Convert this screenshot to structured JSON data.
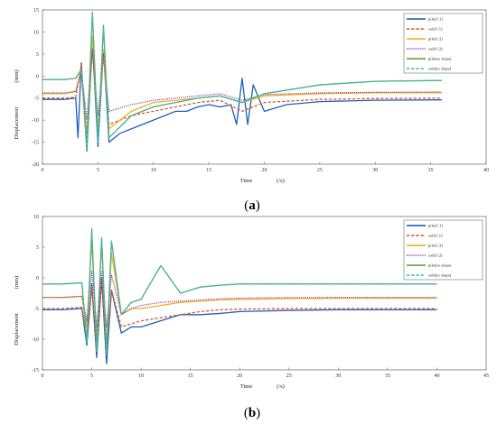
{
  "chart_data": [
    {
      "type": "line",
      "panel_label": "(a)",
      "panel_letter": "a",
      "xlabel": "Time",
      "xunit": "(/s)",
      "ylabel": "Displacement",
      "yunit": "(mm)",
      "xlim": [
        0,
        40
      ],
      "ylim": [
        -20,
        15
      ],
      "xticks": [
        0,
        5,
        10,
        15,
        20,
        25,
        30,
        35,
        40
      ],
      "yticks": [
        15,
        10,
        5,
        0,
        -5,
        -10,
        -15,
        -20
      ],
      "grid": false,
      "legend_position": "top-right",
      "series": [
        {
          "name": "pile(1:1)",
          "color": "#1f5fbf",
          "dash": "solid",
          "x": [
            0,
            2,
            3,
            3.2,
            3.5,
            4,
            4.5,
            5,
            5.5,
            6,
            7,
            8,
            9,
            10,
            11,
            12,
            13,
            14,
            15,
            16,
            17,
            17.5,
            18,
            18.5,
            19,
            20,
            22,
            25,
            30,
            36
          ],
          "y": [
            -5.3,
            -5.3,
            -5.0,
            -14.0,
            3.0,
            -17.0,
            8.0,
            -16.0,
            6.0,
            -15.0,
            -13.0,
            -12.0,
            -11.0,
            -10.0,
            -9.0,
            -8.0,
            -8.0,
            -7.0,
            -6.5,
            -7.0,
            -6.5,
            -11.0,
            -0.5,
            -11.0,
            -2.0,
            -8.0,
            -6.5,
            -5.8,
            -5.5,
            -5.4
          ]
        },
        {
          "name": "soil(1:1)",
          "color": "#e0542a",
          "dash": "dashed",
          "x": [
            0,
            2,
            3,
            3.5,
            4,
            4.5,
            5,
            5.5,
            6,
            8,
            10,
            12,
            14,
            16,
            18,
            20,
            25,
            30,
            36
          ],
          "y": [
            -5.0,
            -5.0,
            -4.8,
            2.5,
            -13.0,
            6.0,
            -12.0,
            5.0,
            -11.0,
            -9.0,
            -8.0,
            -7.0,
            -6.0,
            -5.5,
            -8.0,
            -6.0,
            -5.3,
            -5.1,
            -5.0
          ]
        },
        {
          "name": "pile(1:2)",
          "color": "#f0b020",
          "dash": "solid",
          "x": [
            0,
            2,
            3,
            3.5,
            4,
            4.5,
            5,
            5.5,
            6,
            8,
            10,
            12,
            14,
            16,
            18,
            20,
            25,
            30,
            36
          ],
          "y": [
            -4.0,
            -4.0,
            -3.5,
            1.5,
            -14.0,
            9.0,
            -13.0,
            6.0,
            -12.0,
            -8.0,
            -6.0,
            -5.5,
            -5.0,
            -4.5,
            -6.0,
            -4.5,
            -4.0,
            -3.8,
            -3.8
          ]
        },
        {
          "name": "soil(1:2)",
          "color": "#7a2a8f",
          "dash": "dotted",
          "x": [
            0,
            2,
            3,
            3.5,
            4,
            4.5,
            5,
            5.5,
            6,
            8,
            10,
            12,
            14,
            16,
            18,
            20,
            25,
            30,
            36
          ],
          "y": [
            -3.8,
            -3.8,
            -3.5,
            1.0,
            -10.0,
            6.0,
            -9.0,
            5.0,
            -8.0,
            -6.5,
            -5.5,
            -5.0,
            -4.5,
            -4.0,
            -5.5,
            -4.2,
            -3.8,
            -3.7,
            -3.6
          ]
        },
        {
          "name": "pile(no slope)",
          "color": "#5caa3a",
          "dash": "solid",
          "x": [
            0,
            2,
            3,
            3.5,
            4,
            4.5,
            5,
            5.5,
            6,
            8,
            10,
            12,
            14,
            16,
            18,
            20,
            25,
            30,
            36
          ],
          "y": [
            -0.8,
            -0.8,
            -0.5,
            1.5,
            -16.0,
            14.5,
            -15.0,
            11.5,
            -14.0,
            -9.0,
            -7.0,
            -6.0,
            -5.0,
            -4.5,
            -6.0,
            -4.0,
            -2.0,
            -1.2,
            -1.0
          ]
        },
        {
          "name": "soil(no slope)",
          "color": "#3fb9cc",
          "dash": "dashed",
          "x": [
            0,
            2,
            3,
            3.5,
            4,
            4.5,
            5,
            5.5,
            6,
            8,
            10,
            12,
            14,
            16,
            18,
            20,
            25,
            30,
            36
          ],
          "y": [
            -0.8,
            -0.8,
            -0.5,
            1.5,
            -16.5,
            14.0,
            -15.0,
            11.0,
            -14.0,
            -9.0,
            -7.0,
            -6.0,
            -5.0,
            -4.5,
            -6.0,
            -4.0,
            -2.0,
            -1.2,
            -1.0
          ]
        }
      ]
    },
    {
      "type": "line",
      "panel_label": "(b)",
      "panel_letter": "b",
      "xlabel": "Time",
      "xunit": "(/s)",
      "ylabel": "Displacement",
      "yunit": "(mm)",
      "xlim": [
        0,
        45
      ],
      "ylim": [
        -15,
        10
      ],
      "xticks": [
        0,
        5,
        10,
        15,
        20,
        25,
        30,
        35,
        40,
        45
      ],
      "yticks": [
        10,
        5,
        0,
        -5,
        -10,
        -15
      ],
      "grid": false,
      "legend_position": "top-right",
      "series": [
        {
          "name": "pile(1:1)",
          "color": "#1f5fbf",
          "dash": "solid",
          "x": [
            0,
            2,
            4,
            4.5,
            5,
            5.5,
            6,
            6.5,
            7,
            8,
            9,
            10,
            12,
            14,
            16,
            18,
            20,
            25,
            30,
            40
          ],
          "y": [
            -5.2,
            -5.2,
            -5.0,
            -11.0,
            -1.0,
            -13.0,
            0.0,
            -14.0,
            -2.0,
            -9.0,
            -8.0,
            -8.0,
            -7.0,
            -6.0,
            -6.0,
            -5.8,
            -5.5,
            -5.3,
            -5.2,
            -5.2
          ]
        },
        {
          "name": "soil(1:1)",
          "color": "#e0542a",
          "dash": "dashed",
          "x": [
            0,
            2,
            4,
            4.5,
            5,
            5.5,
            6,
            6.5,
            7,
            8,
            9,
            10,
            12,
            14,
            16,
            18,
            20,
            25,
            30,
            40
          ],
          "y": [
            -5.0,
            -5.0,
            -4.8,
            -10.0,
            -1.5,
            -12.0,
            -0.5,
            -12.0,
            -2.0,
            -8.0,
            -7.5,
            -7.0,
            -6.5,
            -6.0,
            -5.5,
            -5.2,
            -5.1,
            -5.0,
            -5.0,
            -5.0
          ]
        },
        {
          "name": "pile(1:2)",
          "color": "#f0b020",
          "dash": "solid",
          "x": [
            0,
            2,
            4,
            4.5,
            5,
            5.5,
            6,
            6.5,
            7,
            8,
            9,
            10,
            12,
            14,
            16,
            18,
            20,
            25,
            30,
            40
          ],
          "y": [
            -3.2,
            -3.2,
            -3.0,
            -8.0,
            6.0,
            -10.0,
            5.5,
            -11.0,
            4.0,
            -6.0,
            -5.0,
            -5.0,
            -4.5,
            -4.0,
            -3.8,
            -3.6,
            -3.5,
            -3.4,
            -3.3,
            -3.3
          ]
        },
        {
          "name": "soil(1:2)",
          "color": "#7a2a8f",
          "dash": "dotted",
          "x": [
            0,
            2,
            4,
            4.5,
            5,
            5.5,
            6,
            6.5,
            7,
            8,
            9,
            10,
            12,
            14,
            16,
            18,
            20,
            25,
            30,
            40
          ],
          "y": [
            -3.2,
            -3.2,
            -3.0,
            -7.0,
            1.0,
            -8.0,
            1.0,
            -8.0,
            0.5,
            -6.0,
            -5.0,
            -4.5,
            -4.0,
            -3.8,
            -3.6,
            -3.4,
            -3.3,
            -3.2,
            -3.2,
            -3.2
          ]
        },
        {
          "name": "pile(no slope)",
          "color": "#5caa3a",
          "dash": "solid",
          "x": [
            0,
            2,
            4,
            4.5,
            5,
            5.5,
            6,
            6.5,
            7,
            8,
            9,
            10,
            12,
            14,
            16,
            18,
            20,
            25,
            30,
            40
          ],
          "y": [
            -1.0,
            -1.0,
            -0.8,
            -10.5,
            8.0,
            -12.0,
            6.5,
            -12.5,
            6.0,
            -6.0,
            -4.0,
            -3.5,
            2.0,
            -2.5,
            -1.5,
            -1.2,
            -1.0,
            -1.0,
            -1.0,
            -1.0
          ]
        },
        {
          "name": "soil(no slope)",
          "color": "#3fb9cc",
          "dash": "dashed",
          "x": [
            0,
            2,
            4,
            4.5,
            5,
            5.5,
            6,
            6.5,
            7,
            8,
            9,
            10,
            12,
            14,
            16,
            18,
            20,
            25,
            30,
            40
          ],
          "y": [
            -1.0,
            -1.0,
            -0.8,
            -10.5,
            7.5,
            -12.0,
            6.5,
            -12.5,
            6.0,
            -6.0,
            -4.0,
            -3.5,
            2.0,
            -2.5,
            -1.5,
            -1.2,
            -1.0,
            -1.0,
            -1.0,
            -1.0
          ]
        }
      ]
    }
  ]
}
